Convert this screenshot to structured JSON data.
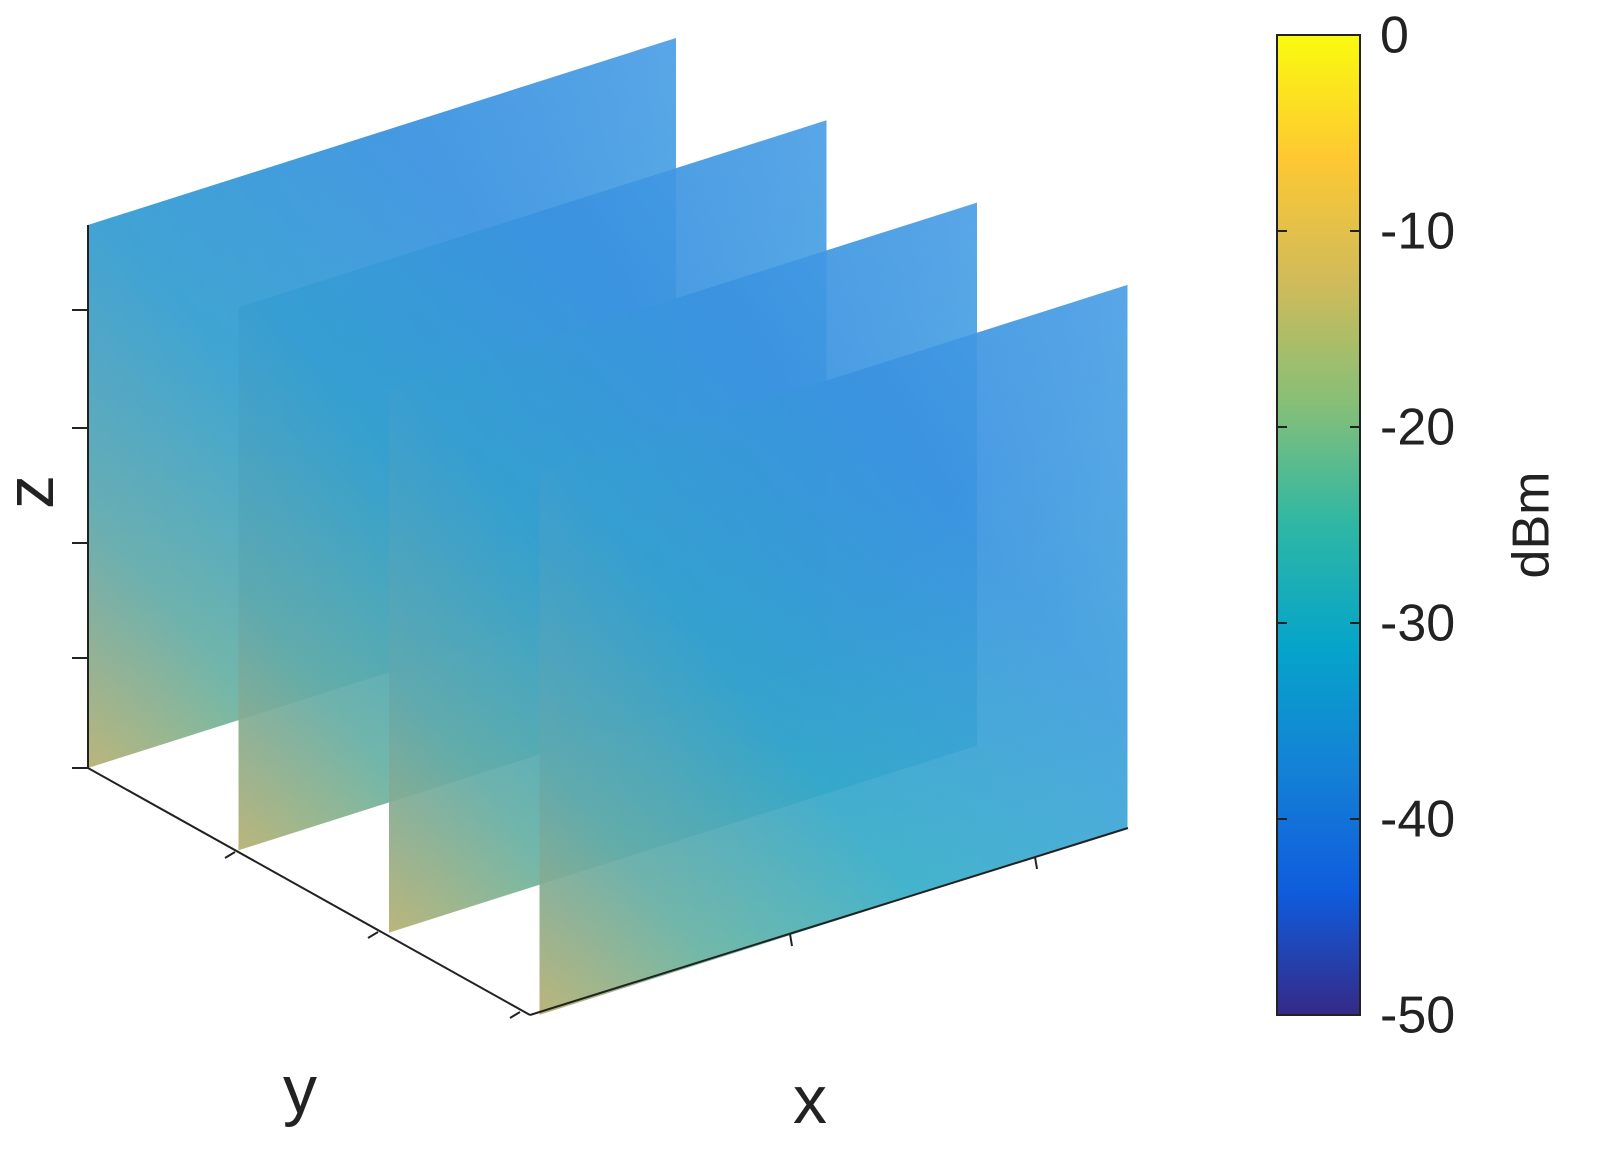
{
  "chart_data": {
    "type": "slice",
    "xlabel": "x",
    "ylabel": "y",
    "zlabel": "z",
    "colorbar": {
      "label": "dBm",
      "clim": [
        -50,
        0
      ],
      "ticks": [
        0,
        -10,
        -20,
        -30,
        -40,
        -50
      ],
      "colormap": "parula"
    }
  }
}
